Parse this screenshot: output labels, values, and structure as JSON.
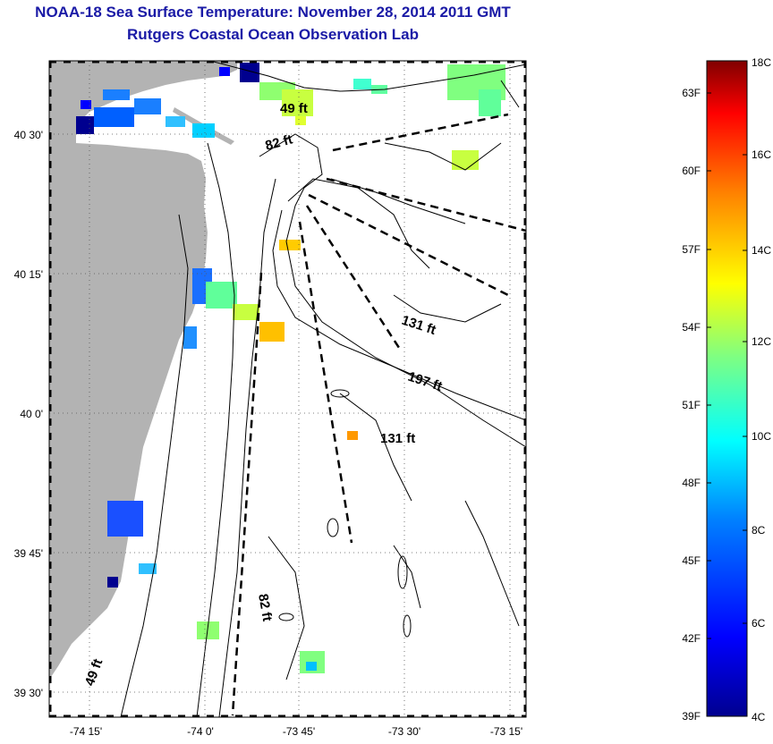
{
  "title": "NOAA-18 Sea Surface Temperature:  November 28, 2014 2011 GMT",
  "subtitle": "Rutgers Coastal Ocean Observation Lab",
  "lat_labels": [
    "40 30'",
    "40 15'",
    "40 0'",
    "39 45'",
    "39 30'"
  ],
  "lon_labels": [
    "-74 15'",
    "-74 0'",
    "-73 45'",
    "-73 30'",
    "-73 15'"
  ],
  "depth_labels": [
    "49 ft",
    "82 ft",
    "131 ft",
    "197 ft",
    "131 ft",
    "82 ft",
    "49 ft"
  ],
  "colorbar": {
    "f_labels": [
      "63F",
      "60F",
      "57F",
      "54F",
      "51F",
      "48F",
      "45F",
      "42F",
      "39F"
    ],
    "c_labels": [
      "18C",
      "16C",
      "14C",
      "12C",
      "10C",
      "8C",
      "6C",
      "4C"
    ],
    "colors": [
      "#00008f",
      "#0000ff",
      "#0080ff",
      "#00ffff",
      "#80ff80",
      "#ffff00",
      "#ff8000",
      "#ff0000",
      "#800000"
    ]
  },
  "colors": {
    "land": "#b3b3b3",
    "title": "#1a1aa6"
  }
}
